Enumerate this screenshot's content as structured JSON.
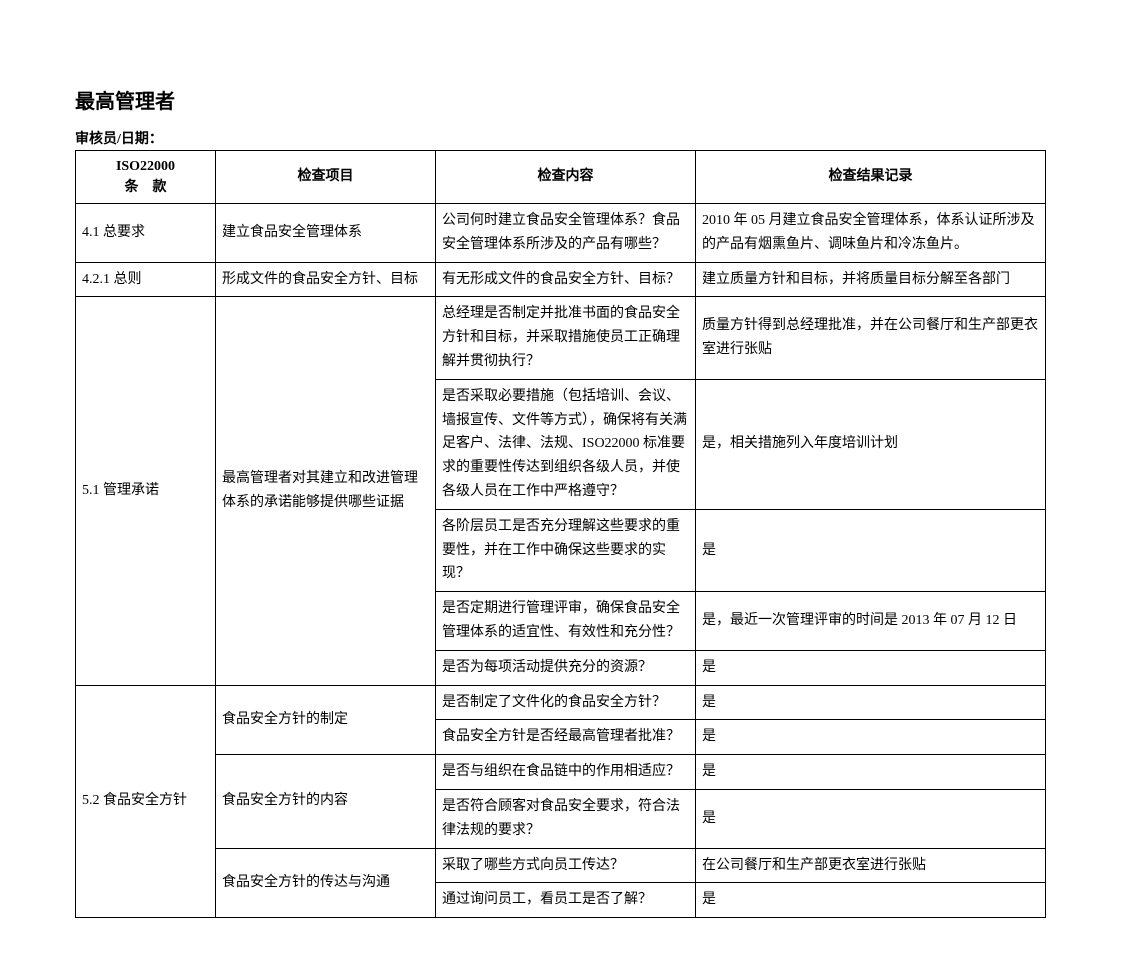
{
  "title": "最高管理者",
  "subtitle": "审核员/日期：",
  "header": {
    "c1_line1": "ISO22000",
    "c1_line2": "条　款",
    "c2": "检查项目",
    "c3": "检查内容",
    "c4": "检查结果记录"
  },
  "rows": [
    {
      "clause": "4.1 总要求",
      "item": "建立食品安全管理体系",
      "content": "公司何时建立食品安全管理体系？食品安全管理体系所涉及的产品有哪些？",
      "result": "2010 年 05 月建立食品安全管理体系，体系认证所涉及的产品有烟熏鱼片、调味鱼片和冷冻鱼片。"
    },
    {
      "clause": "4.2.1 总则",
      "item": "形成文件的食品安全方针、目标",
      "content": "有无形成文件的食品安全方针、目标？",
      "result": "建立质量方针和目标，并将质量目标分解至各部门"
    },
    {
      "clause": "5.1 管理承诺",
      "item": "最高管理者对其建立和改进管理体系的承诺能够提供哪些证据",
      "sub": [
        {
          "content": "总经理是否制定并批准书面的食品安全方针和目标，并采取措施使员工正确理解并贯彻执行？",
          "result": "质量方针得到总经理批准，并在公司餐厅和生产部更衣室进行张贴"
        },
        {
          "content": "是否采取必要措施（包括培训、会议、墙报宣传、文件等方式），确保将有关满足客户、法律、法规、ISO22000 标准要求的重要性传达到组织各级人员，并使各级人员在工作中严格遵守？",
          "result": "是，相关措施列入年度培训计划"
        },
        {
          "content": "各阶层员工是否充分理解这些要求的重要性，并在工作中确保这些要求的实现？",
          "result": "是"
        },
        {
          "content": "是否定期进行管理评审，确保食品安全管理体系的适宜性、有效性和充分性？",
          "result": "是，最近一次管理评审的时间是 2013 年 07 月 12 日"
        },
        {
          "content": "是否为每项活动提供充分的资源？",
          "result": "是"
        }
      ]
    },
    {
      "clause": "5.2 食品安全方针",
      "groups": [
        {
          "item": "食品安全方针的制定",
          "sub": [
            {
              "content": "是否制定了文件化的食品安全方针？",
              "result": "是"
            },
            {
              "content": "食品安全方针是否经最高管理者批准？",
              "result": "是"
            }
          ]
        },
        {
          "item": "食品安全方针的内容",
          "sub": [
            {
              "content": "是否与组织在食品链中的作用相适应？",
              "result": "是"
            },
            {
              "content": "是否符合顾客对食品安全要求，符合法律法规的要求？",
              "result": "是"
            }
          ]
        },
        {
          "item": "食品安全方针的传达与沟通",
          "sub": [
            {
              "content": "采取了哪些方式向员工传达？",
              "result": "在公司餐厅和生产部更衣室进行张贴"
            },
            {
              "content": "通过询问员工，看员工是否了解？",
              "result": "是"
            }
          ]
        }
      ]
    }
  ]
}
